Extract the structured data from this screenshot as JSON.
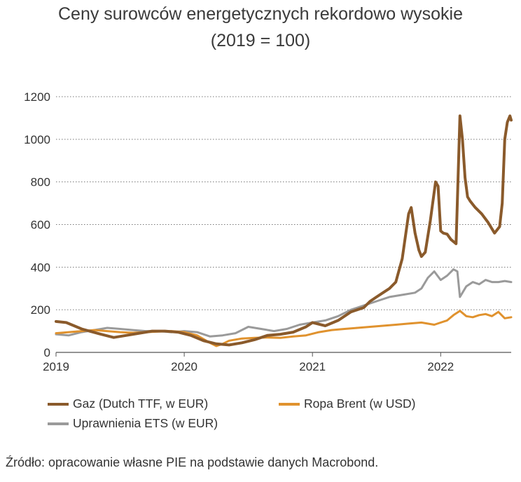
{
  "title_line1": "Ceny surowców energetycznych rekordowo wysokie",
  "title_line2": "(2019 = 100)",
  "source": "Źródło: opracowanie własne PIE na podstawie danych Macrobond.",
  "chart_data": {
    "type": "line",
    "title": "Ceny surowców energetycznych rekordowo wysokie (2019 = 100)",
    "x_ticks": [
      {
        "value": 2019,
        "label": "2019"
      },
      {
        "value": 2020,
        "label": "2020"
      },
      {
        "value": 2021,
        "label": "2021"
      },
      {
        "value": 2022,
        "label": "2022"
      }
    ],
    "xlim": [
      2019.0,
      2022.55
    ],
    "ylim": [
      0,
      1200
    ],
    "y_ticks": [
      0,
      200,
      400,
      600,
      800,
      1000,
      1200
    ],
    "grid": "horizontal dotted",
    "legend_position": "bottom",
    "series": [
      {
        "name": "Gaz (Dutch TTF, w EUR)",
        "color": "#8a5a2b",
        "x": [
          2019.0,
          2019.08,
          2019.2,
          2019.35,
          2019.45,
          2019.55,
          2019.65,
          2019.75,
          2019.85,
          2019.95,
          2020.05,
          2020.15,
          2020.25,
          2020.35,
          2020.45,
          2020.55,
          2020.65,
          2020.75,
          2020.85,
          2020.95,
          2021.0,
          2021.1,
          2021.2,
          2021.3,
          2021.4,
          2021.45,
          2021.5,
          2021.55,
          2021.6,
          2021.65,
          2021.7,
          2021.75,
          2021.77,
          2021.8,
          2021.83,
          2021.85,
          2021.88,
          2021.92,
          2021.96,
          2021.98,
          2022.0,
          2022.02,
          2022.05,
          2022.08,
          2022.12,
          2022.15,
          2022.17,
          2022.19,
          2022.21,
          2022.23,
          2022.27,
          2022.32,
          2022.37,
          2022.42,
          2022.46,
          2022.48,
          2022.5,
          2022.52,
          2022.54,
          2022.55
        ],
        "y": [
          145,
          140,
          110,
          85,
          70,
          80,
          90,
          100,
          100,
          95,
          80,
          55,
          40,
          35,
          45,
          60,
          80,
          85,
          95,
          120,
          140,
          125,
          150,
          190,
          210,
          240,
          260,
          280,
          300,
          330,
          440,
          650,
          680,
          560,
          480,
          450,
          470,
          620,
          800,
          780,
          570,
          560,
          555,
          530,
          510,
          1110,
          1000,
          820,
          730,
          710,
          680,
          650,
          610,
          560,
          590,
          700,
          1000,
          1080,
          1110,
          1090
        ],
        "stroke_width": 4
      },
      {
        "name": "Ropa Brent (w USD)",
        "color": "#e0922e",
        "x": [
          2019.0,
          2019.1,
          2019.2,
          2019.3,
          2019.4,
          2019.5,
          2019.6,
          2019.7,
          2019.8,
          2019.9,
          2020.0,
          2020.1,
          2020.2,
          2020.25,
          2020.3,
          2020.35,
          2020.45,
          2020.55,
          2020.65,
          2020.75,
          2020.85,
          2020.95,
          2021.05,
          2021.15,
          2021.25,
          2021.35,
          2021.45,
          2021.55,
          2021.65,
          2021.75,
          2021.85,
          2021.95,
          2022.05,
          2022.1,
          2022.15,
          2022.2,
          2022.25,
          2022.3,
          2022.35,
          2022.4,
          2022.45,
          2022.5,
          2022.55
        ],
        "y": [
          90,
          95,
          100,
          105,
          100,
          95,
          92,
          95,
          98,
          100,
          95,
          80,
          45,
          30,
          40,
          55,
          65,
          68,
          70,
          68,
          75,
          80,
          95,
          105,
          110,
          115,
          120,
          125,
          130,
          135,
          140,
          130,
          150,
          175,
          195,
          170,
          165,
          175,
          180,
          170,
          190,
          160,
          165
        ],
        "stroke_width": 3
      },
      {
        "name": "Uprawnienia ETS (w EUR)",
        "color": "#9a9a9a",
        "x": [
          2019.0,
          2019.1,
          2019.2,
          2019.3,
          2019.4,
          2019.5,
          2019.6,
          2019.7,
          2019.8,
          2019.9,
          2020.0,
          2020.1,
          2020.2,
          2020.3,
          2020.4,
          2020.5,
          2020.6,
          2020.7,
          2020.8,
          2020.9,
          2021.0,
          2021.1,
          2021.2,
          2021.3,
          2021.4,
          2021.5,
          2021.6,
          2021.7,
          2021.8,
          2021.85,
          2021.9,
          2021.95,
          2022.0,
          2022.05,
          2022.1,
          2022.13,
          2022.15,
          2022.2,
          2022.25,
          2022.3,
          2022.35,
          2022.4,
          2022.45,
          2022.5,
          2022.55
        ],
        "y": [
          85,
          80,
          95,
          105,
          115,
          110,
          105,
          100,
          100,
          95,
          100,
          95,
          75,
          80,
          90,
          120,
          110,
          100,
          110,
          130,
          140,
          150,
          170,
          200,
          220,
          240,
          260,
          270,
          280,
          300,
          350,
          380,
          340,
          360,
          390,
          380,
          260,
          310,
          330,
          320,
          340,
          330,
          330,
          335,
          330
        ],
        "stroke_width": 3
      }
    ]
  }
}
